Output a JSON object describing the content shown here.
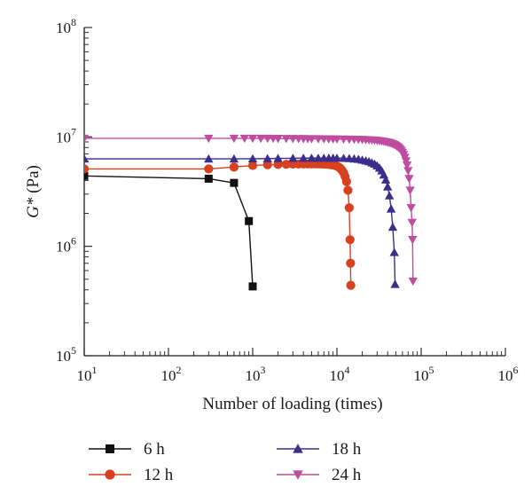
{
  "chart_data": {
    "type": "line",
    "xlabel": "Number of loading (times)",
    "ylabel_main": "G*",
    "ylabel_unit": " (Pa)",
    "x_scale": "log",
    "y_scale": "log",
    "xlim": [
      10,
      1000000
    ],
    "ylim": [
      100000,
      100000000
    ],
    "x_ticks": [
      {
        "value": 10,
        "base": "10",
        "exp": "1"
      },
      {
        "value": 100,
        "base": "10",
        "exp": "2"
      },
      {
        "value": 1000,
        "base": "10",
        "exp": "3"
      },
      {
        "value": 10000,
        "base": "10",
        "exp": "4"
      },
      {
        "value": 100000,
        "base": "10",
        "exp": "5"
      },
      {
        "value": 1000000,
        "base": "10",
        "exp": "6"
      }
    ],
    "y_ticks": [
      {
        "value": 100000,
        "base": "10",
        "exp": "5"
      },
      {
        "value": 1000000,
        "base": "10",
        "exp": "6"
      },
      {
        "value": 10000000,
        "base": "10",
        "exp": "7"
      },
      {
        "value": 100000000,
        "base": "10",
        "exp": "8"
      }
    ],
    "grid": false,
    "legend_position": "bottom",
    "series": [
      {
        "name": "6 h",
        "color": "#111111",
        "marker": "square",
        "points": [
          [
            10,
            4400000
          ],
          [
            300,
            4150000
          ],
          [
            600,
            3800000
          ],
          [
            900,
            1700000
          ],
          [
            1000,
            430000
          ]
        ]
      },
      {
        "name": "12 h",
        "color": "#d7411f",
        "marker": "circle",
        "points": [
          [
            10,
            5100000
          ],
          [
            300,
            5100000
          ],
          [
            600,
            5300000
          ],
          [
            1000,
            5480000
          ],
          [
            1500,
            5560000
          ],
          [
            2000,
            5600000
          ],
          [
            2500,
            5620000
          ],
          [
            3000,
            5640000
          ],
          [
            3500,
            5650000
          ],
          [
            4000,
            5660000
          ],
          [
            4500,
            5660000
          ],
          [
            5000,
            5660000
          ],
          [
            5500,
            5660000
          ],
          [
            6000,
            5660000
          ],
          [
            6500,
            5650000
          ],
          [
            7000,
            5640000
          ],
          [
            7500,
            5620000
          ],
          [
            8000,
            5600000
          ],
          [
            8500,
            5570000
          ],
          [
            9000,
            5530000
          ],
          [
            9500,
            5480000
          ],
          [
            10000,
            5400000
          ],
          [
            10500,
            5300000
          ],
          [
            11000,
            5150000
          ],
          [
            11500,
            4950000
          ],
          [
            12000,
            4700000
          ],
          [
            12500,
            4350000
          ],
          [
            13000,
            3900000
          ],
          [
            13500,
            3250000
          ],
          [
            14000,
            2250000
          ],
          [
            14300,
            1150000
          ],
          [
            14500,
            700000
          ],
          [
            14600,
            440000
          ]
        ]
      },
      {
        "name": "18 h",
        "color": "#3a2d8c",
        "marker": "triangle-up",
        "points": [
          [
            10,
            6300000
          ],
          [
            300,
            6300000
          ],
          [
            600,
            6300000
          ],
          [
            1000,
            6320000
          ],
          [
            1500,
            6340000
          ],
          [
            2000,
            6360000
          ],
          [
            3000,
            6380000
          ],
          [
            4000,
            6400000
          ],
          [
            5000,
            6400000
          ],
          [
            6000,
            6400000
          ],
          [
            7000,
            6400000
          ],
          [
            8000,
            6400000
          ],
          [
            9000,
            6400000
          ],
          [
            10000,
            6400000
          ],
          [
            12000,
            6380000
          ],
          [
            14000,
            6350000
          ],
          [
            16000,
            6300000
          ],
          [
            18000,
            6250000
          ],
          [
            20000,
            6150000
          ],
          [
            22000,
            6050000
          ],
          [
            24000,
            5950000
          ],
          [
            26000,
            5800000
          ],
          [
            28000,
            5650000
          ],
          [
            30000,
            5450000
          ],
          [
            32000,
            5200000
          ],
          [
            34000,
            4900000
          ],
          [
            36000,
            4500000
          ],
          [
            38000,
            4050000
          ],
          [
            40000,
            3500000
          ],
          [
            42000,
            2900000
          ],
          [
            44000,
            2200000
          ],
          [
            46000,
            1500000
          ],
          [
            48000,
            880000
          ],
          [
            49000,
            450000
          ]
        ]
      },
      {
        "name": "24 h",
        "color": "#c04ca0",
        "marker": "triangle-down",
        "points": [
          [
            10,
            9700000
          ],
          [
            300,
            9700000
          ],
          [
            600,
            9700000
          ],
          [
            800,
            9700000
          ],
          [
            1000,
            9700000
          ],
          [
            1250,
            9690000
          ],
          [
            1500,
            9680000
          ],
          [
            1750,
            9670000
          ],
          [
            2000,
            9660000
          ],
          [
            2500,
            9650000
          ],
          [
            3000,
            9640000
          ],
          [
            3500,
            9630000
          ],
          [
            4000,
            9620000
          ],
          [
            4500,
            9610000
          ],
          [
            5000,
            9600000
          ],
          [
            6000,
            9590000
          ],
          [
            7000,
            9580000
          ],
          [
            8000,
            9570000
          ],
          [
            9000,
            9560000
          ],
          [
            10000,
            9550000
          ],
          [
            12000,
            9530000
          ],
          [
            14000,
            9510000
          ],
          [
            16000,
            9490000
          ],
          [
            18000,
            9470000
          ],
          [
            20000,
            9450000
          ],
          [
            22000,
            9420000
          ],
          [
            24000,
            9390000
          ],
          [
            26000,
            9350000
          ],
          [
            28000,
            9310000
          ],
          [
            30000,
            9260000
          ],
          [
            32000,
            9210000
          ],
          [
            34000,
            9150000
          ],
          [
            36000,
            9080000
          ],
          [
            38000,
            9010000
          ],
          [
            40000,
            8930000
          ],
          [
            42000,
            8840000
          ],
          [
            44000,
            8740000
          ],
          [
            46000,
            8630000
          ],
          [
            48000,
            8500000
          ],
          [
            50000,
            8350000
          ],
          [
            52000,
            8180000
          ],
          [
            54000,
            7990000
          ],
          [
            56000,
            7770000
          ],
          [
            58000,
            7510000
          ],
          [
            60000,
            7220000
          ],
          [
            62000,
            6880000
          ],
          [
            64000,
            6490000
          ],
          [
            66000,
            6040000
          ],
          [
            68000,
            5520000
          ],
          [
            70000,
            4900000
          ],
          [
            72000,
            4150000
          ],
          [
            74000,
            3250000
          ],
          [
            76000,
            2250000
          ],
          [
            78000,
            1650000
          ],
          [
            79000,
            1150000
          ],
          [
            80000,
            480000
          ]
        ]
      }
    ]
  }
}
